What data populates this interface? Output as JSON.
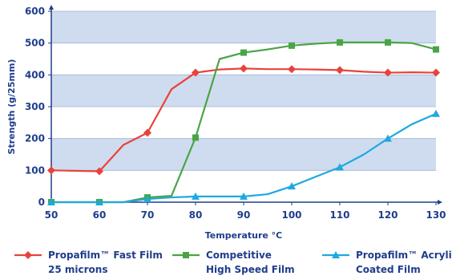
{
  "chart_data": {
    "type": "line",
    "xlabel": "Temperature °C",
    "ylabel": "Strength (g/25mm)",
    "xlim": [
      50,
      130
    ],
    "ylim": [
      0,
      600
    ],
    "x_ticks": [
      "50",
      "60",
      "70",
      "80",
      "90",
      "100",
      "110",
      "120",
      "130"
    ],
    "y_ticks": [
      "0",
      "100",
      "200",
      "300",
      "400",
      "500",
      "600"
    ],
    "grid": "horizontal bands",
    "legend_position": "bottom",
    "series": [
      {
        "name_lines": [
          "Propafilm™ Fast Film",
          "25 microns"
        ],
        "color": "#e8433a",
        "marker": "diamond",
        "points": [
          [
            50,
            100
          ],
          [
            60,
            97
          ],
          [
            65,
            180
          ],
          [
            70,
            218
          ],
          [
            75,
            355
          ],
          [
            80,
            407
          ],
          [
            85,
            417
          ],
          [
            90,
            420
          ],
          [
            95,
            418
          ],
          [
            100,
            418
          ],
          [
            105,
            417
          ],
          [
            110,
            415
          ],
          [
            115,
            410
          ],
          [
            120,
            407
          ],
          [
            125,
            408
          ],
          [
            130,
            407
          ]
        ],
        "marker_x": [
          50,
          60,
          70,
          80,
          90,
          100,
          110,
          120,
          130
        ]
      },
      {
        "name_lines": [
          "Competitive",
          "High Speed Film"
        ],
        "color": "#4aa447",
        "marker": "square",
        "points": [
          [
            50,
            0
          ],
          [
            60,
            0
          ],
          [
            65,
            0
          ],
          [
            70,
            15
          ],
          [
            75,
            20
          ],
          [
            80,
            203
          ],
          [
            85,
            450
          ],
          [
            90,
            470
          ],
          [
            95,
            480
          ],
          [
            100,
            492
          ],
          [
            105,
            498
          ],
          [
            110,
            502
          ],
          [
            115,
            502
          ],
          [
            120,
            502
          ],
          [
            125,
            500
          ],
          [
            130,
            480
          ]
        ],
        "marker_x": [
          50,
          60,
          70,
          80,
          90,
          100,
          110,
          120,
          130
        ]
      },
      {
        "name_lines": [
          "Propafilm™ Acrylic",
          "Coated Film"
        ],
        "color": "#1ea9e0",
        "marker": "triangle",
        "points": [
          [
            50,
            0
          ],
          [
            60,
            0
          ],
          [
            65,
            0
          ],
          [
            70,
            10
          ],
          [
            75,
            15
          ],
          [
            80,
            18
          ],
          [
            85,
            18
          ],
          [
            90,
            18
          ],
          [
            95,
            25
          ],
          [
            100,
            50
          ],
          [
            105,
            80
          ],
          [
            110,
            110
          ],
          [
            115,
            150
          ],
          [
            120,
            200
          ],
          [
            125,
            245
          ],
          [
            130,
            278
          ]
        ],
        "marker_x": [
          50,
          60,
          70,
          80,
          90,
          100,
          110,
          120,
          130
        ]
      }
    ]
  }
}
